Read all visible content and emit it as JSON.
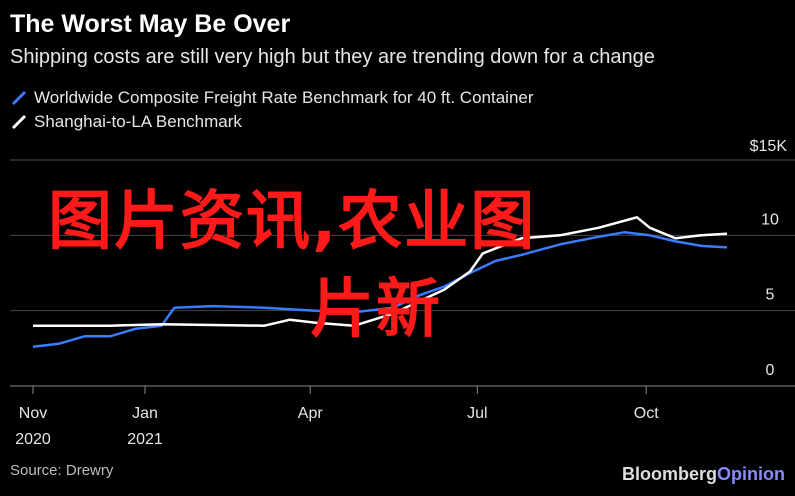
{
  "header": {
    "title": "The Worst May Be Over",
    "subtitle": "Shipping costs are still very high but they are trending down for a change"
  },
  "legend": [
    {
      "label": "Worldwide Composite Freight Rate Benchmark for 40 ft. Container",
      "color": "#3b7bff"
    },
    {
      "label": "Shanghai-to-LA Benchmark",
      "color": "#ffffff"
    }
  ],
  "footer": {
    "source": "Source: Drewry",
    "brand_main": "Bloomberg",
    "brand_accent": "Opinion"
  },
  "watermark": {
    "line1": "图片资讯,农业图",
    "line2": "片新"
  },
  "chart_data": {
    "type": "line",
    "ylim": [
      0,
      15
    ],
    "y_ticks": [
      0,
      5,
      10
    ],
    "y_tick_labels": [
      "0",
      "5",
      "10"
    ],
    "y_top_label": "$15K",
    "x_range": [
      "2020-11-01",
      "2021-11-20"
    ],
    "x_ticks": [
      {
        "date": "2020-11-01",
        "label": [
          "Nov",
          "2020"
        ]
      },
      {
        "date": "2021-01-01",
        "label": [
          "Jan",
          "2021"
        ]
      },
      {
        "date": "2021-04-01",
        "label": [
          "Apr"
        ]
      },
      {
        "date": "2021-07-01",
        "label": [
          "Jul"
        ]
      },
      {
        "date": "2021-10-01",
        "label": [
          "Oct"
        ]
      }
    ],
    "grid": true,
    "series": [
      {
        "name": "Worldwide Composite Freight Rate Benchmark for 40 ft. Container",
        "color": "#3b7bff",
        "points": [
          [
            "2020-11-01",
            2.6
          ],
          [
            "2020-11-15",
            2.8
          ],
          [
            "2020-11-29",
            3.3
          ],
          [
            "2020-12-13",
            3.3
          ],
          [
            "2020-12-27",
            3.8
          ],
          [
            "2021-01-10",
            4.0
          ],
          [
            "2021-01-17",
            5.2
          ],
          [
            "2021-02-07",
            5.3
          ],
          [
            "2021-03-07",
            5.2
          ],
          [
            "2021-04-04",
            5.0
          ],
          [
            "2021-04-25",
            4.9
          ],
          [
            "2021-05-16",
            5.2
          ],
          [
            "2021-05-30",
            6.0
          ],
          [
            "2021-06-13",
            6.6
          ],
          [
            "2021-06-27",
            7.5
          ],
          [
            "2021-07-11",
            8.3
          ],
          [
            "2021-07-25",
            8.7
          ],
          [
            "2021-08-15",
            9.4
          ],
          [
            "2021-09-05",
            9.9
          ],
          [
            "2021-09-19",
            10.2
          ],
          [
            "2021-10-03",
            10.0
          ],
          [
            "2021-10-17",
            9.6
          ],
          [
            "2021-10-31",
            9.3
          ],
          [
            "2021-11-14",
            9.2
          ]
        ]
      },
      {
        "name": "Shanghai-to-LA Benchmark",
        "color": "#ffffff",
        "points": [
          [
            "2020-11-01",
            4.0
          ],
          [
            "2020-12-13",
            4.0
          ],
          [
            "2021-01-10",
            4.1
          ],
          [
            "2021-03-07",
            4.0
          ],
          [
            "2021-03-21",
            4.4
          ],
          [
            "2021-04-04",
            4.2
          ],
          [
            "2021-04-25",
            4.0
          ],
          [
            "2021-05-16",
            4.8
          ],
          [
            "2021-05-30",
            5.6
          ],
          [
            "2021-06-13",
            6.4
          ],
          [
            "2021-06-27",
            7.6
          ],
          [
            "2021-07-04",
            8.8
          ],
          [
            "2021-07-25",
            9.8
          ],
          [
            "2021-08-15",
            10.0
          ],
          [
            "2021-09-05",
            10.5
          ],
          [
            "2021-09-26",
            11.2
          ],
          [
            "2021-10-03",
            10.5
          ],
          [
            "2021-10-17",
            9.8
          ],
          [
            "2021-10-31",
            10.0
          ],
          [
            "2021-11-14",
            10.1
          ]
        ]
      }
    ]
  }
}
